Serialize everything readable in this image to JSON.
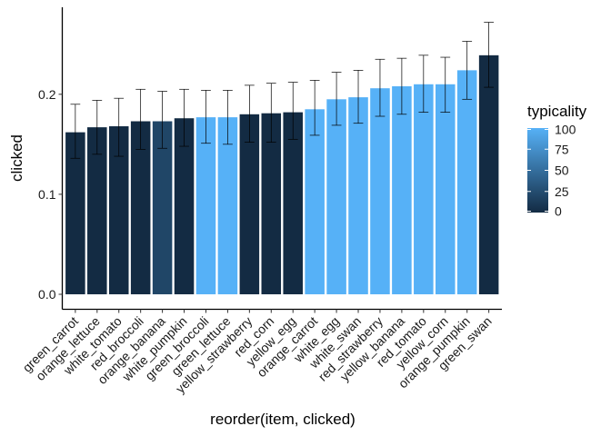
{
  "chart_data": {
    "type": "bar",
    "title": "",
    "xlabel": "reorder(item, clicked)",
    "ylabel": "clicked",
    "ylim": [
      -0.015,
      0.287
    ],
    "yticks": [
      0.0,
      0.1,
      0.2
    ],
    "ytick_labels": [
      "0.0",
      "0.1",
      "0.2"
    ],
    "grid": false,
    "legend_position": "right",
    "categories": [
      "green_carrot",
      "orange_lettuce",
      "white_tomato",
      "red_broccoli",
      "orange_banana",
      "white_pumpkin",
      "green_broccoli",
      "green_lettuce",
      "yellow_strawberry",
      "red_corn",
      "yellow_egg",
      "orange_carrot",
      "white_egg",
      "white_swan",
      "red_strawberry",
      "yellow_banana",
      "red_tomato",
      "yellow_corn",
      "orange_pumpkin",
      "green_swan"
    ],
    "values": [
      0.162,
      0.167,
      0.168,
      0.173,
      0.173,
      0.176,
      0.177,
      0.177,
      0.18,
      0.181,
      0.182,
      0.185,
      0.195,
      0.197,
      0.206,
      0.208,
      0.21,
      0.21,
      0.224,
      0.239
    ],
    "error_low": [
      0.136,
      0.14,
      0.138,
      0.145,
      0.146,
      0.148,
      0.151,
      0.15,
      0.152,
      0.152,
      0.155,
      0.159,
      0.169,
      0.171,
      0.178,
      0.18,
      0.182,
      0.182,
      0.195,
      0.207
    ],
    "error_high": [
      0.19,
      0.194,
      0.196,
      0.205,
      0.203,
      0.205,
      0.204,
      0.204,
      0.209,
      0.211,
      0.212,
      0.214,
      0.222,
      0.224,
      0.235,
      0.236,
      0.239,
      0.237,
      0.253,
      0.272
    ],
    "typicality": [
      0,
      0,
      0,
      0,
      20,
      0,
      100,
      100,
      0,
      0,
      0,
      100,
      100,
      100,
      100,
      100,
      100,
      100,
      100,
      0
    ],
    "color_scale": {
      "title": "typicality",
      "low_color": "#132B43",
      "high_color": "#56B1F7",
      "domain": [
        0,
        100
      ],
      "breaks": [
        0,
        25,
        50,
        75,
        100
      ]
    }
  }
}
